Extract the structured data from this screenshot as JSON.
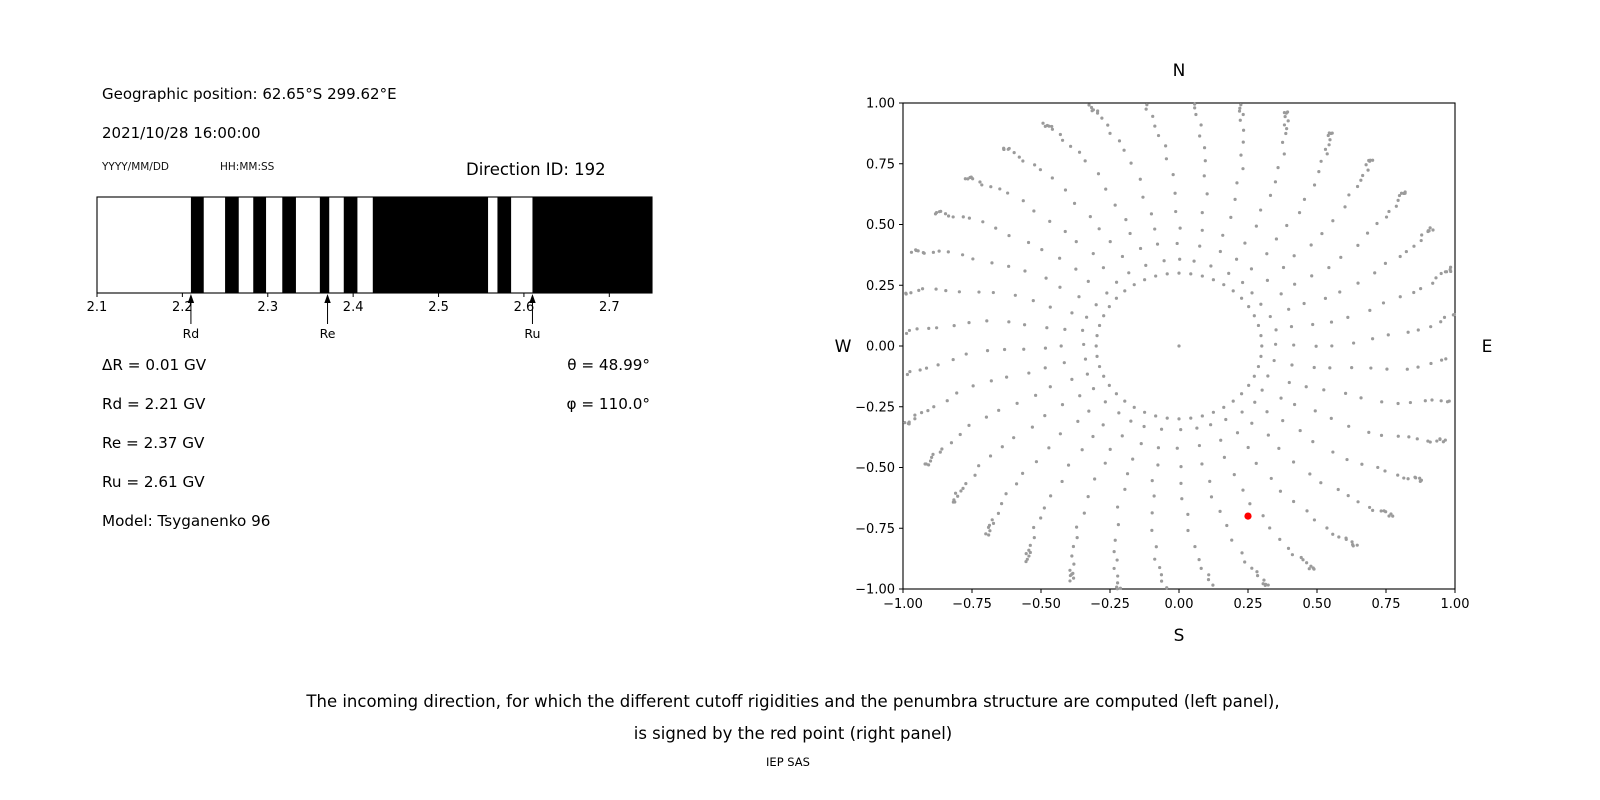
{
  "header": {
    "geo_position": "Geographic position: 62.65°S 299.62°E",
    "datetime": "2021/10/28 16:00:00",
    "date_format": "YYYY/MM/DD",
    "time_format": "HH:MM:SS",
    "direction_id": "Direction ID: 192"
  },
  "values": {
    "delta_r": "ΔR = 0.01 GV",
    "rd": "Rd = 2.21 GV",
    "re": "Re = 2.37 GV",
    "ru": "Ru = 2.61 GV",
    "model": "Model: Tsyganenko 96",
    "theta": "θ = 48.99°",
    "phi": "φ = 110.0°"
  },
  "caption": {
    "line1": "The incoming direction, for which the different cutoff rigidities and the penumbra structure are computed (left panel),",
    "line2": "is signed by the red point (right panel)",
    "credit": "IEP SAS"
  },
  "chart_data": [
    {
      "id": "penumbra-structure",
      "type": "bar",
      "description": "Penumbra structure: black bands are forbidden rigidity intervals (GV)",
      "xlim": [
        2.1,
        2.75
      ],
      "xticks": [
        2.1,
        2.2,
        2.3,
        2.4,
        2.5,
        2.6,
        2.7
      ],
      "black_bands": [
        [
          2.21,
          2.225
        ],
        [
          2.25,
          2.266
        ],
        [
          2.283,
          2.298
        ],
        [
          2.317,
          2.333
        ],
        [
          2.361,
          2.372
        ],
        [
          2.389,
          2.405
        ],
        [
          2.423,
          2.558
        ],
        [
          2.569,
          2.585
        ],
        [
          2.61,
          2.75
        ]
      ],
      "markers": [
        {
          "label": "Rd",
          "x": 2.21
        },
        {
          "label": "Re",
          "x": 2.37
        },
        {
          "label": "Ru",
          "x": 2.61
        }
      ],
      "band_color": "#000000",
      "background": "#ffffff"
    },
    {
      "id": "incoming-directions",
      "type": "scatter",
      "xlim": [
        -1.0,
        1.0
      ],
      "ylim": [
        -1.0,
        1.0
      ],
      "xticks": [
        -1.0,
        -0.75,
        -0.5,
        -0.25,
        0.0,
        0.25,
        0.5,
        0.75,
        1.0
      ],
      "yticks": [
        -1.0,
        -0.75,
        -0.5,
        -0.25,
        0.0,
        0.25,
        0.5,
        0.75,
        1.0
      ],
      "xtick_labels": [
        "−1.00",
        "−0.75",
        "−0.50",
        "−0.25",
        "0.00",
        "0.25",
        "0.50",
        "0.75",
        "1.00"
      ],
      "ytick_labels": [
        "−1.00",
        "−0.75",
        "−0.50",
        "−0.25",
        "0.00",
        "0.25",
        "0.50",
        "0.75",
        "1.00"
      ],
      "compass": {
        "top": "N",
        "bottom": "S",
        "left": "W",
        "right": "E"
      },
      "grid_dots": {
        "color": "#9b9b9b",
        "spokes": 36,
        "spoke_radii": [
          0.35,
          0.42,
          0.49,
          0.56,
          0.63,
          0.7,
          0.765,
          0.825,
          0.875,
          0.915,
          0.95,
          0.975,
          0.995,
          1.01,
          1.02,
          1.028,
          1.034,
          1.038
        ],
        "inner_ring": {
          "radius": 0.3,
          "count": 44
        },
        "center_point": true,
        "curl_deg": 8
      },
      "red_point": {
        "x": 0.25,
        "y": -0.7,
        "color": "#ff0000"
      }
    }
  ]
}
